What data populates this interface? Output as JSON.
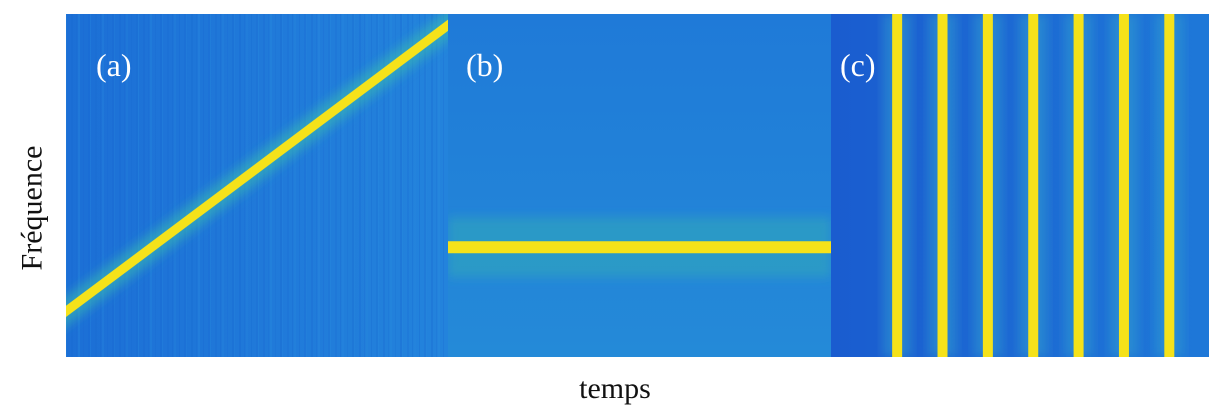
{
  "figure": {
    "ylabel": "Fréquence",
    "xlabel": "temps",
    "colors": {
      "background": "#1f77d4",
      "background_dark": "#1a5fd0",
      "ridge": "#f5e21a",
      "halo": "#2fb4b4"
    }
  },
  "chart_data": [
    {
      "type": "heatmap",
      "panel": "(a)",
      "pattern": "diagonal-ridge",
      "ridge_start": {
        "t": 0.0,
        "f": 0.13
      },
      "ridge_end": {
        "t": 1.0,
        "f": 0.97
      }
    },
    {
      "type": "heatmap",
      "panel": "(b)",
      "pattern": "horizontal-ridge",
      "ridge_frequency": 0.32
    },
    {
      "type": "heatmap",
      "panel": "(c)",
      "pattern": "vertical-ridges",
      "ridge_times": [
        0.175,
        0.295,
        0.415,
        0.535,
        0.655,
        0.775,
        0.895
      ]
    }
  ]
}
